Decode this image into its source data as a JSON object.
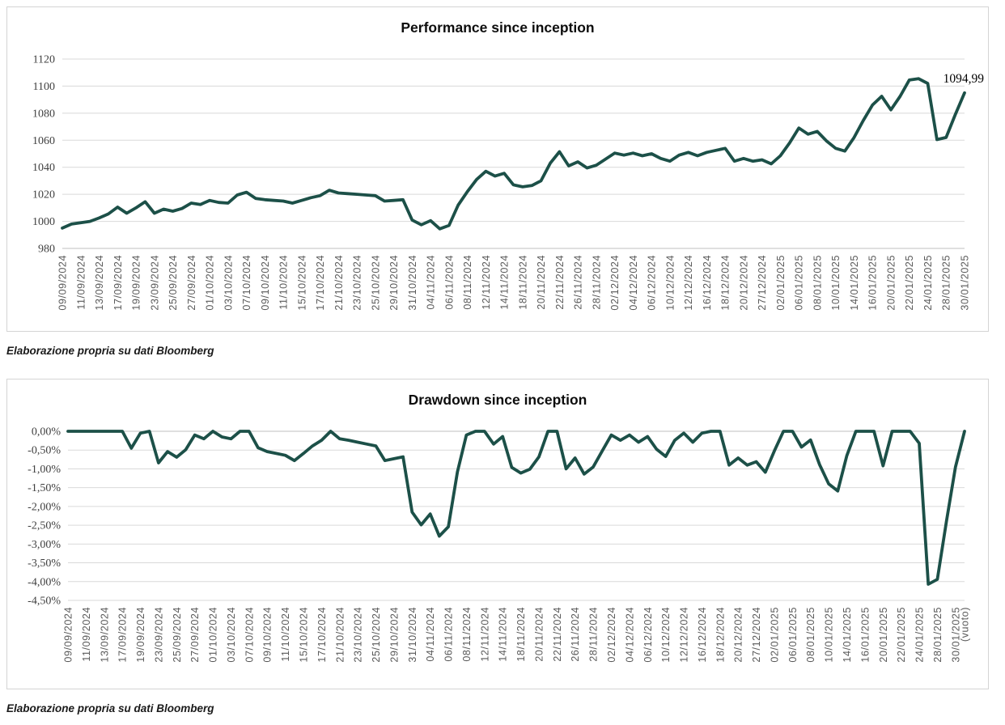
{
  "captions": [
    "Elaborazione propria su dati Bloomberg",
    "Elaborazione propria su dati Bloomberg"
  ],
  "colors": {
    "line": "#1c5048",
    "grid": "#d9d9d9",
    "axis": "#bfbfbf",
    "x_tick_label": "#595959",
    "y_tick_label": "#404040",
    "title": "#0d0d0d",
    "card_border": "#d4d4d4",
    "background": "#ffffff"
  },
  "chart_data": [
    {
      "type": "line",
      "title": "Performance since inception",
      "legend_position": "none",
      "grid": true,
      "ylim": [
        980,
        1120
      ],
      "y_ticks": [
        {
          "value": 1120,
          "label": "1120"
        },
        {
          "value": 1100,
          "label": "1100"
        },
        {
          "value": 1080,
          "label": "1080"
        },
        {
          "value": 1060,
          "label": "1060"
        },
        {
          "value": 1040,
          "label": "1040"
        },
        {
          "value": 1020,
          "label": "1020"
        },
        {
          "value": 1000,
          "label": "1000"
        },
        {
          "value": 980,
          "label": "980"
        }
      ],
      "x_tick_labels": [
        "09/09/2024",
        "11/09/2024",
        "13/09/2024",
        "17/09/2024",
        "19/09/2024",
        "23/09/2024",
        "25/09/2024",
        "27/09/2024",
        "01/10/2024",
        "03/10/2024",
        "07/10/2024",
        "09/10/2024",
        "11/10/2024",
        "15/10/2024",
        "17/10/2024",
        "21/10/2024",
        "23/10/2024",
        "25/10/2024",
        "29/10/2024",
        "31/10/2024",
        "04/11/2024",
        "06/11/2024",
        "08/11/2024",
        "12/11/2024",
        "14/11/2024",
        "18/11/2024",
        "20/11/2024",
        "22/11/2024",
        "26/11/2024",
        "28/11/2024",
        "02/12/2024",
        "04/12/2024",
        "06/12/2024",
        "10/12/2024",
        "12/12/2024",
        "16/12/2024",
        "18/12/2024",
        "20/12/2024",
        "27/12/2024",
        "02/01/2025",
        "06/01/2025",
        "08/01/2025",
        "10/01/2025",
        "14/01/2025",
        "16/01/2025",
        "20/01/2025",
        "22/01/2025",
        "24/01/2025",
        "28/01/2025",
        "30/01/2025"
      ],
      "x_labels_every": 2,
      "values": [
        995,
        998,
        999,
        1000,
        1002.5,
        1005.5,
        1010.5,
        1006,
        1010,
        1014.5,
        1006,
        1009,
        1007.5,
        1009.5,
        1013.5,
        1012.5,
        1015.5,
        1014,
        1013.5,
        1019.5,
        1021.5,
        1017,
        1016,
        1015.5,
        1015,
        1013.5,
        1015.5,
        1017.5,
        1019,
        1023,
        1021,
        1020.5,
        1020,
        1019.5,
        1019,
        1015,
        1015.5,
        1016,
        1001,
        997.5,
        1000.5,
        994.5,
        997,
        1012,
        1022,
        1031,
        1037,
        1033.5,
        1035.5,
        1027,
        1025.5,
        1026.5,
        1030,
        1043,
        1051.5,
        1041,
        1044,
        1039.5,
        1041.5,
        1046,
        1050.5,
        1049,
        1050.5,
        1048.5,
        1050,
        1046.5,
        1044.5,
        1049,
        1051,
        1048.5,
        1051,
        1052.5,
        1054,
        1044.5,
        1046.5,
        1044.5,
        1045.5,
        1042.5,
        1048.5,
        1058,
        1069,
        1064.5,
        1066.5,
        1059.5,
        1054,
        1052,
        1062,
        1074.5,
        1086,
        1092.5,
        1082.5,
        1092.5,
        1104.5,
        1105.5,
        1102,
        1060.5,
        1062,
        1079,
        1094.99
      ],
      "last_value_label": "1094,99"
    },
    {
      "type": "line",
      "title": "Drawdown since inception",
      "legend_position": "none",
      "grid": true,
      "ylim": [
        -4.5,
        0
      ],
      "y_ticks": [
        {
          "value": 0,
          "label": "0,00%"
        },
        {
          "value": -0.5,
          "label": "-0,50%"
        },
        {
          "value": -1,
          "label": "-1,00%"
        },
        {
          "value": -1.5,
          "label": "-1,50%"
        },
        {
          "value": -2,
          "label": "-2,00%"
        },
        {
          "value": -2.5,
          "label": "-2,50%"
        },
        {
          "value": -3,
          "label": "-3,00%"
        },
        {
          "value": -3.5,
          "label": "-3,50%"
        },
        {
          "value": -4,
          "label": "-4,00%"
        },
        {
          "value": -4.5,
          "label": "-4,50%"
        }
      ],
      "x_tick_labels": [
        "09/09/2024",
        "11/09/2024",
        "13/09/2024",
        "17/09/2024",
        "19/09/2024",
        "23/09/2024",
        "25/09/2024",
        "27/09/2024",
        "01/10/2024",
        "03/10/2024",
        "07/10/2024",
        "09/10/2024",
        "11/10/2024",
        "15/10/2024",
        "17/10/2024",
        "21/10/2024",
        "23/10/2024",
        "25/10/2024",
        "29/10/2024",
        "31/10/2024",
        "04/11/2024",
        "06/11/2024",
        "08/11/2024",
        "12/11/2024",
        "14/11/2024",
        "18/11/2024",
        "20/11/2024",
        "22/11/2024",
        "26/11/2024",
        "28/11/2024",
        "02/12/2024",
        "04/12/2024",
        "06/12/2024",
        "10/12/2024",
        "12/12/2024",
        "16/12/2024",
        "18/12/2024",
        "20/12/2024",
        "27/12/2024",
        "02/01/2025",
        "06/01/2025",
        "08/01/2025",
        "10/01/2025",
        "14/01/2025",
        "16/01/2025",
        "20/01/2025",
        "22/01/2025",
        "24/01/2025",
        "28/01/2025",
        "30/01/2025",
        "(vuoto)"
      ],
      "x_labels_every": 2,
      "values": [
        0,
        0,
        0,
        0,
        0,
        0,
        0,
        -0.45,
        -0.05,
        0,
        -0.84,
        -0.54,
        -0.69,
        -0.49,
        -0.1,
        -0.2,
        0,
        -0.15,
        -0.2,
        0,
        0,
        -0.44,
        -0.54,
        -0.59,
        -0.64,
        -0.78,
        -0.59,
        -0.39,
        -0.24,
        0,
        -0.2,
        -0.24,
        -0.29,
        -0.34,
        -0.39,
        -0.78,
        -0.73,
        -0.68,
        -2.15,
        -2.49,
        -2.2,
        -2.79,
        -2.54,
        -1.08,
        -0.1,
        0,
        0,
        -0.34,
        -0.14,
        -0.96,
        -1.11,
        -1.01,
        -0.68,
        0,
        0,
        -1.0,
        -0.71,
        -1.14,
        -0.95,
        -0.52,
        -0.1,
        -0.24,
        -0.1,
        -0.29,
        -0.14,
        -0.48,
        -0.67,
        -0.24,
        -0.05,
        -0.29,
        -0.05,
        0,
        0,
        -0.9,
        -0.71,
        -0.9,
        -0.81,
        -1.09,
        -0.52,
        0,
        0,
        -0.42,
        -0.23,
        -0.89,
        -1.4,
        -1.59,
        -0.65,
        0,
        0,
        0,
        -0.92,
        0,
        0,
        0,
        -0.32,
        -4.07,
        -3.94,
        -2.4,
        -0.95,
        0
      ]
    }
  ]
}
